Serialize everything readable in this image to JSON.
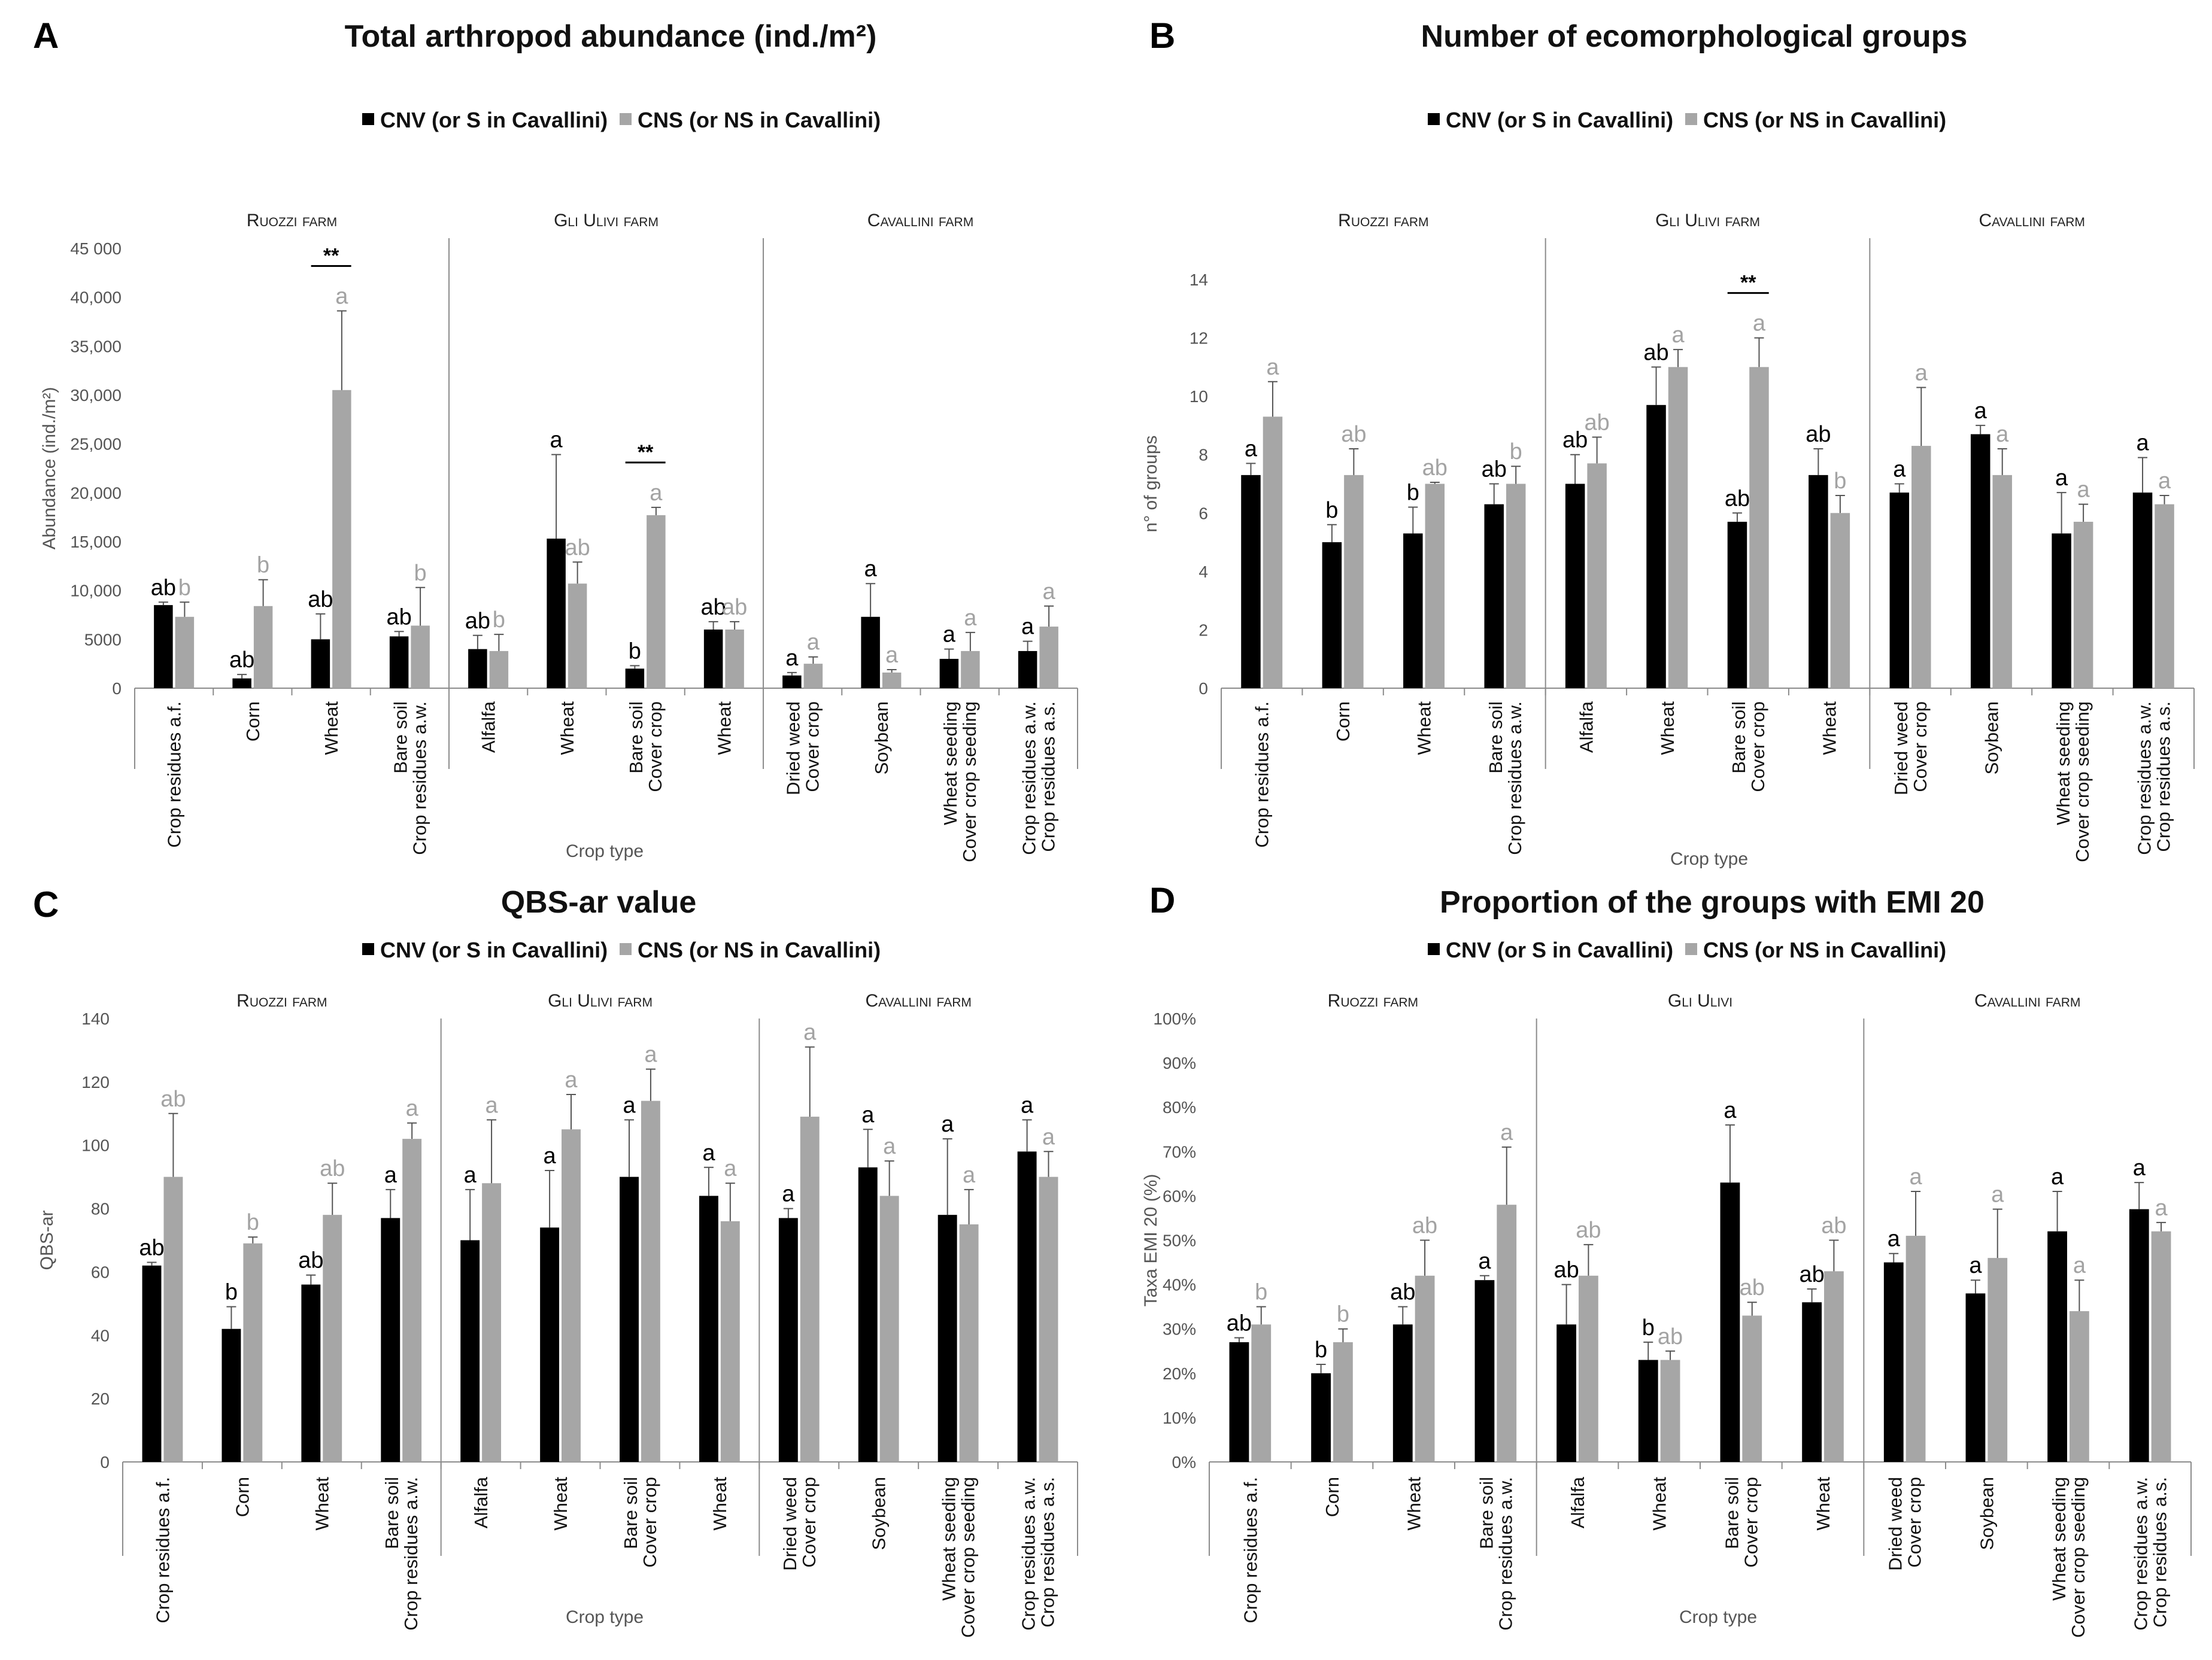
{
  "legend": {
    "cnv": "CNV (or S in Cavallini)",
    "cns": "CNS (or NS in Cavallini)"
  },
  "colors": {
    "cnv": "#000000",
    "cns": "#a6a6a6",
    "err": "#555555",
    "axis": "#8c8c8c"
  },
  "xlabel": "Crop type",
  "chart_data": [
    {
      "id": "A",
      "type": "bar",
      "letter": "A",
      "title": "Total arthropod abundance (ind./m²)",
      "ylabel": "Abundance (ind./m²)",
      "ylim": [
        0,
        45000
      ],
      "yticks": [
        "0",
        "5000",
        "10,000",
        "15,000",
        "20,000",
        "25,000",
        "30,000",
        "35,000",
        "40,000",
        "45 000"
      ],
      "farms": [
        "Ruozzi farm",
        "Gli Ulivi farm",
        "Cavallini farm"
      ],
      "categories": [
        "Crop residues a.f.",
        "Corn",
        "Wheat",
        "Bare soil|Crop residues a.w.",
        "Alfalfa",
        "Wheat",
        "Bare soil|Cover crop",
        "Wheat",
        "Dried weed|Cover crop",
        "Soybean",
        "Wheat seeding|Cover crop seeding",
        "Crop residues a.w.|Crop residues a.s."
      ],
      "series": [
        {
          "name": "CNV (or S in Cavallini)",
          "values": [
            8500,
            1000,
            5000,
            5300,
            4000,
            15300,
            2000,
            6000,
            1300,
            7300,
            3000,
            3800
          ],
          "errors": [
            300,
            400,
            2600,
            500,
            1400,
            8600,
            300,
            800,
            300,
            3400,
            1000,
            1000
          ],
          "letters": [
            "ab",
            "ab",
            "ab",
            "ab",
            "ab",
            "a",
            "b",
            "ab",
            "a",
            "a",
            "a",
            "a"
          ]
        },
        {
          "name": "CNS (or NS in Cavallini)",
          "values": [
            7300,
            8400,
            30500,
            6400,
            3800,
            10700,
            17700,
            6000,
            2500,
            1600,
            3800,
            6300
          ],
          "errors": [
            1500,
            2700,
            8100,
            3900,
            1700,
            2200,
            800,
            800,
            700,
            300,
            1900,
            2100
          ],
          "letters": [
            "b",
            "b",
            "a",
            "b",
            "b",
            "ab",
            "a",
            "ab",
            "a",
            "a",
            "a",
            "a"
          ]
        }
      ],
      "significance": [
        {
          "category_index": 2,
          "label": "**"
        },
        {
          "category_index": 6,
          "label": "**"
        }
      ]
    },
    {
      "id": "B",
      "type": "bar",
      "letter": "B",
      "title": "Number of ecomorphological groups",
      "ylabel": "n° of groups",
      "ylim": [
        0,
        14
      ],
      "yticks": [
        "0",
        "2",
        "4",
        "6",
        "8",
        "10",
        "12",
        "14"
      ],
      "farms": [
        "Ruozzi farm",
        "Gli Ulivi farm",
        "Cavallini farm"
      ],
      "categories": [
        "Crop residues a.f.",
        "Corn",
        "Wheat",
        "Bare soil|Crop residues a.w.",
        "Alfalfa",
        "Wheat",
        "Bare soil|Cover crop",
        "Wheat",
        "Dried weed|Cover crop",
        "Soybean",
        "Wheat seeding|Cover crop seeding",
        "Crop residues a.w.|Crop residues a.s."
      ],
      "series": [
        {
          "name": "CNV (or S in Cavallini)",
          "values": [
            7.3,
            5.0,
            5.3,
            6.3,
            7.0,
            9.7,
            5.7,
            7.3,
            6.7,
            8.7,
            5.3,
            6.7
          ],
          "errors": [
            0.4,
            0.6,
            0.9,
            0.7,
            1.0,
            1.3,
            0.3,
            0.9,
            0.3,
            0.3,
            1.4,
            1.2
          ],
          "letters": [
            "a",
            "b",
            "b",
            "ab",
            "ab",
            "ab",
            "ab",
            "ab",
            "a",
            "a",
            "a",
            "a"
          ]
        },
        {
          "name": "CNS (or NS in Cavallini)",
          "values": [
            9.3,
            7.3,
            7.0,
            7.0,
            7.7,
            11.0,
            11.0,
            6.0,
            8.3,
            7.3,
            5.7,
            6.3
          ],
          "errors": [
            1.2,
            0.9,
            0.05,
            0.6,
            0.9,
            0.6,
            1.0,
            0.6,
            2.0,
            0.9,
            0.6,
            0.3
          ],
          "letters": [
            "a",
            "ab",
            "ab",
            "b",
            "ab",
            "a",
            "a",
            "b",
            "a",
            "a",
            "a",
            "a"
          ]
        }
      ],
      "significance": [
        {
          "category_index": 6,
          "label": "**"
        }
      ]
    },
    {
      "id": "C",
      "type": "bar",
      "letter": "C",
      "title": "QBS-ar value",
      "ylabel": "QBS-ar",
      "ylim": [
        0,
        140
      ],
      "yticks": [
        "0",
        "20",
        "40",
        "60",
        "80",
        "100",
        "120",
        "140"
      ],
      "farms": [
        "Ruozzi farm",
        "Gli Ulivi farm",
        "Cavallini farm"
      ],
      "categories": [
        "Crop residues a.f.",
        "Corn",
        "Wheat",
        "Bare soil|Crop residues a.w.",
        "Alfalfa",
        "Wheat",
        "Bare soil|Cover crop",
        "Wheat",
        "Dried weed|Cover crop",
        "Soybean",
        "Wheat seeding|Cover crop seeding",
        "Crop residues a.w.|Crop residues a.s."
      ],
      "series": [
        {
          "name": "CNV (or S in Cavallini)",
          "values": [
            62,
            42,
            56,
            77,
            70,
            74,
            90,
            84,
            77,
            93,
            78,
            98
          ],
          "errors": [
            1,
            7,
            3,
            9,
            16,
            18,
            18,
            9,
            3,
            12,
            24,
            10
          ],
          "letters": [
            "ab",
            "b",
            "ab",
            "a",
            "a",
            "a",
            "a",
            "a",
            "a",
            "a",
            "a",
            "a"
          ]
        },
        {
          "name": "CNS (or NS in Cavallini)",
          "values": [
            90,
            69,
            78,
            102,
            88,
            105,
            114,
            76,
            109,
            84,
            75,
            90
          ],
          "errors": [
            20,
            2,
            10,
            5,
            20,
            11,
            10,
            12,
            22,
            11,
            11,
            8
          ],
          "letters": [
            "ab",
            "b",
            "ab",
            "a",
            "a",
            "a",
            "a",
            "a",
            "a",
            "a",
            "a",
            "a"
          ]
        }
      ],
      "significance": []
    },
    {
      "id": "D",
      "type": "bar",
      "letter": "D",
      "title": "Proportion of the groups with EMI 20",
      "ylabel": "Taxa EMI 20 (%)",
      "ylim": [
        0,
        100
      ],
      "yticks": [
        "0%",
        "10%",
        "20%",
        "30%",
        "40%",
        "50%",
        "60%",
        "70%",
        "80%",
        "90%",
        "100%"
      ],
      "farms": [
        "Ruozzi farm",
        "Gli Ulivi",
        "Cavallini farm"
      ],
      "categories": [
        "Crop residues a.f.",
        "Corn",
        "Wheat",
        "Bare soil|Crop residues a.w.",
        "Alfalfa",
        "Wheat",
        "Bare soil|Cover crop",
        "Wheat",
        "Dried weed|Cover crop",
        "Soybean",
        "Wheat seeding|Cover crop seeding",
        "Crop residues a.w.|Crop residues a.s."
      ],
      "series": [
        {
          "name": "CNV (or S in Cavallini)",
          "values": [
            27,
            20,
            31,
            41,
            31,
            23,
            63,
            36,
            45,
            38,
            52,
            57
          ],
          "errors": [
            1,
            2,
            4,
            1,
            9,
            4,
            13,
            3,
            2,
            3,
            9,
            6
          ],
          "letters": [
            "ab",
            "b",
            "ab",
            "a",
            "ab",
            "b",
            "a",
            "ab",
            "a",
            "a",
            "a",
            "a"
          ]
        },
        {
          "name": "CNS (or NS in Cavallini)",
          "values": [
            31,
            27,
            42,
            58,
            42,
            23,
            33,
            43,
            51,
            46,
            34,
            52
          ],
          "errors": [
            4,
            3,
            8,
            13,
            7,
            2,
            3,
            7,
            10,
            11,
            7,
            2
          ],
          "letters": [
            "b",
            "b",
            "ab",
            "a",
            "ab",
            "ab",
            "ab",
            "ab",
            "a",
            "a",
            "a",
            "a"
          ]
        }
      ],
      "significance": []
    }
  ]
}
